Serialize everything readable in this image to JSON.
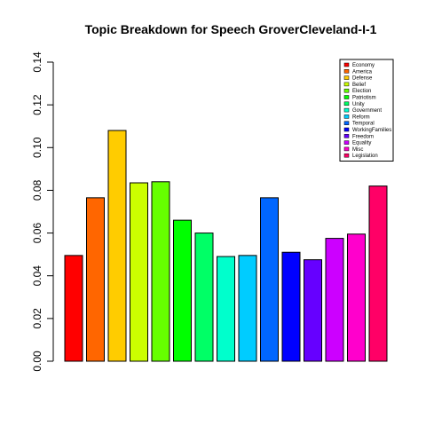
{
  "chart_data": {
    "type": "bar",
    "title": "Topic Breakdown for Speech GroverCleveland-I-1",
    "xlabel": "",
    "ylabel": "",
    "ylim": [
      0,
      0.14
    ],
    "yticks": [
      "0.00",
      "0.02",
      "0.04",
      "0.06",
      "0.08",
      "0.10",
      "0.12",
      "0.14"
    ],
    "grid": false,
    "legend_position": "top-right",
    "categories": [
      "Economy",
      "America",
      "Defense",
      "Belief",
      "Election",
      "Patriotism",
      "Unity",
      "Government",
      "Reform",
      "Temporal",
      "WorkingFamilies",
      "Freedom",
      "Equality",
      "Misc",
      "Legislation"
    ],
    "values": [
      0.0495,
      0.0765,
      0.108,
      0.0835,
      0.084,
      0.066,
      0.06,
      0.049,
      0.0495,
      0.0765,
      0.051,
      0.0475,
      0.0575,
      0.0595,
      0.082
    ],
    "colors": [
      "#FF0000",
      "#FF6600",
      "#FFCC00",
      "#CCFF00",
      "#66FF00",
      "#00FF00",
      "#00FF66",
      "#00FFCC",
      "#00CCFF",
      "#0066FF",
      "#0000FF",
      "#6600FF",
      "#CC00FF",
      "#FF00CC",
      "#FF0066"
    ]
  }
}
